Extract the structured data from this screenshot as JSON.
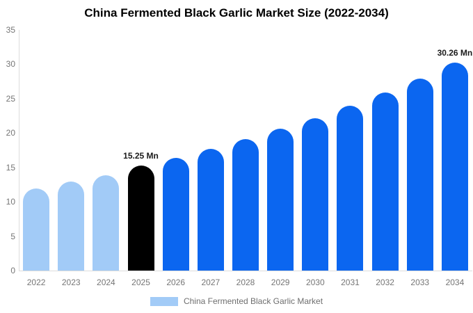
{
  "title": "China Fermented Black Garlic Market Size (2022-2034)",
  "legend": {
    "label": "China Fermented Black Garlic Market",
    "swatch_color": "#a2cbf7"
  },
  "chart_data": {
    "type": "bar",
    "title": "China Fermented Black Garlic Market Size (2022-2034)",
    "categories": [
      "2022",
      "2023",
      "2024",
      "2025",
      "2026",
      "2027",
      "2028",
      "2029",
      "2030",
      "2031",
      "2032",
      "2033",
      "2034"
    ],
    "values": [
      11.9,
      12.9,
      13.9,
      15.25,
      16.4,
      17.7,
      19.1,
      20.6,
      22.2,
      24.0,
      25.9,
      27.9,
      30.26
    ],
    "unit": "Mn",
    "bar_roles": [
      "historical",
      "historical",
      "historical",
      "base_year",
      "forecast",
      "forecast",
      "forecast",
      "forecast",
      "forecast",
      "forecast",
      "forecast",
      "forecast",
      "forecast"
    ],
    "colors": {
      "historical": "#a2cbf7",
      "base_year": "#000000",
      "forecast": "#0b66f0",
      "axis_line": "#dcdcdc",
      "tick_text": "#757575",
      "annotation_text": "#1a1a1a"
    },
    "annotations": [
      {
        "category": "2025",
        "text": "15.25 Mn"
      },
      {
        "category": "2034",
        "text": "30.26 Mn"
      }
    ],
    "xlabel": "",
    "ylabel": "",
    "ylim": [
      0,
      35
    ],
    "yticks": [
      0,
      5,
      10,
      15,
      20,
      25,
      30,
      35
    ],
    "grid": false,
    "legend_position": "bottom"
  }
}
